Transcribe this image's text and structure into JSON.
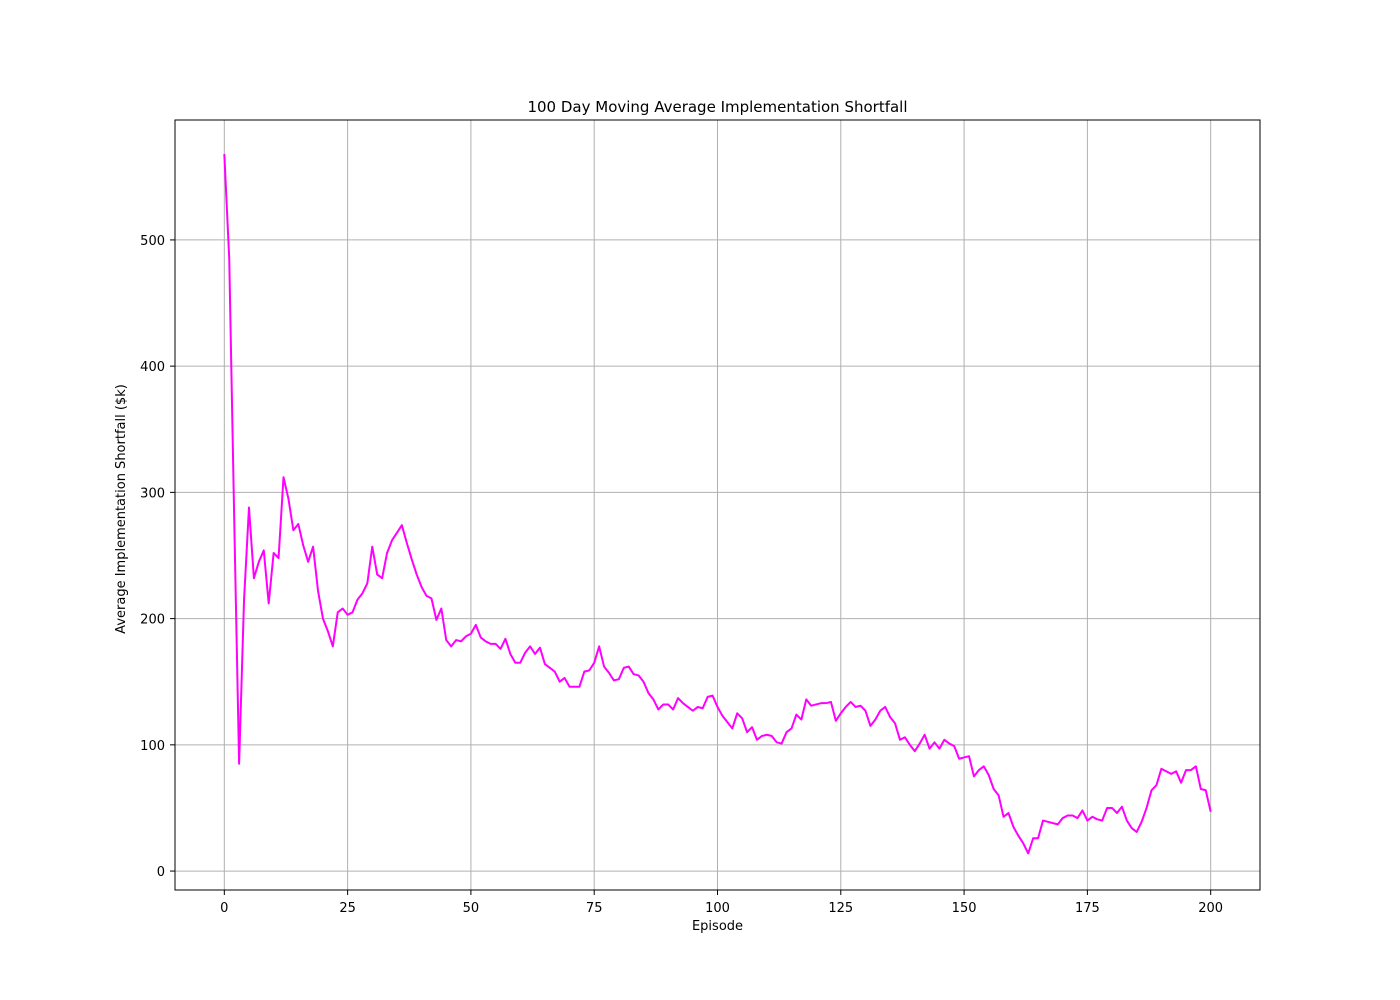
{
  "chart_data": {
    "type": "line",
    "title": "100 Day Moving Average Implementation Shortfall",
    "xlabel": "Episode",
    "ylabel": "Average Implementation Shortfall ($k)",
    "xlim": [
      -10,
      210
    ],
    "ylim": [
      -15,
      595
    ],
    "xticks": [
      0,
      25,
      50,
      75,
      100,
      125,
      150,
      175,
      200
    ],
    "yticks": [
      0,
      100,
      200,
      300,
      400,
      500
    ],
    "grid": true,
    "colors": {
      "line": "#ff00ff",
      "grid": "#b0b0b0",
      "frame": "#000000"
    },
    "series": [
      {
        "x_start": 0,
        "values": [
          568,
          485,
          280,
          85,
          215,
          288,
          232,
          245,
          254,
          212,
          252,
          248,
          312,
          295,
          270,
          275,
          258,
          245,
          257,
          222,
          200,
          190,
          178,
          205,
          208,
          203,
          205,
          215,
          220,
          228,
          257,
          235,
          232,
          252,
          262,
          268,
          274,
          260,
          247,
          235,
          225,
          218,
          216,
          199,
          208,
          183,
          178,
          183,
          182,
          186,
          188,
          195,
          185,
          182,
          180,
          180,
          176,
          184,
          172,
          165,
          165,
          173,
          178,
          172,
          177,
          164,
          161,
          158,
          150,
          153,
          146,
          146,
          146,
          158,
          159,
          165,
          178,
          162,
          157,
          151,
          152,
          161,
          162,
          156,
          155,
          150,
          141,
          136,
          128,
          132,
          132,
          128,
          137,
          133,
          130,
          127,
          130,
          129,
          138,
          139,
          130,
          123,
          118,
          113,
          125,
          121,
          110,
          114,
          104,
          107,
          108,
          107,
          102,
          101,
          110,
          113,
          124,
          120,
          136,
          131,
          132,
          133,
          133,
          134,
          119,
          125,
          130,
          134,
          130,
          131,
          127,
          115,
          120,
          127,
          130,
          122,
          117,
          104,
          106,
          100,
          95,
          101,
          108,
          97,
          102,
          97,
          104,
          101,
          99,
          89,
          90,
          91,
          75,
          80,
          83,
          76,
          65,
          60,
          43,
          46,
          35,
          28,
          22,
          14,
          26,
          26,
          40,
          39,
          38,
          37,
          42,
          44,
          44,
          42,
          48,
          40,
          43,
          41,
          40,
          50,
          50,
          46,
          51,
          40,
          34,
          31,
          39,
          50,
          64,
          68,
          81,
          79,
          77,
          79,
          70,
          80,
          80,
          83,
          65,
          64,
          47
        ]
      }
    ]
  }
}
